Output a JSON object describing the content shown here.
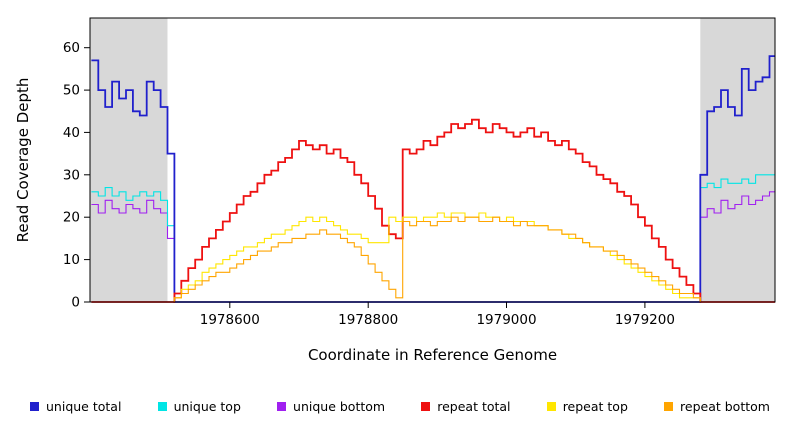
{
  "chart_data": {
    "type": "line",
    "title": "",
    "xlabel": "Coordinate in Reference Genome",
    "ylabel": "Read Coverage Depth",
    "xlim": [
      1978398,
      1979388
    ],
    "ylim": [
      0,
      67
    ],
    "x_ticks": [
      1978600,
      1978800,
      1979000,
      1979200
    ],
    "y_ticks": [
      0,
      10,
      20,
      30,
      40,
      50,
      60
    ],
    "grid": false,
    "legend_position": "bottom",
    "shaded_regions": {
      "color": "#D8D8D8",
      "ranges": [
        [
          1978398,
          1978510
        ],
        [
          1979280,
          1979388
        ]
      ]
    },
    "x_start": 1978400,
    "x_step": 10,
    "series": [
      {
        "name": "unique bottom",
        "color": "#A020F0",
        "width": 1.1,
        "values": [
          23,
          21,
          24,
          22,
          21,
          23,
          22,
          21,
          24,
          22,
          21,
          15,
          0,
          0,
          0,
          0,
          0,
          0,
          0,
          0,
          0,
          0,
          0,
          0,
          0,
          0,
          0,
          0,
          0,
          0,
          0,
          0,
          0,
          0,
          0,
          0,
          0,
          0,
          0,
          0,
          0,
          0,
          0,
          0,
          0,
          0,
          0,
          0,
          0,
          0,
          0,
          0,
          0,
          0,
          0,
          0,
          0,
          0,
          0,
          0,
          0,
          0,
          0,
          0,
          0,
          0,
          0,
          0,
          0,
          0,
          0,
          0,
          0,
          0,
          0,
          0,
          0,
          0,
          0,
          0,
          0,
          0,
          0,
          0,
          0,
          0,
          0,
          0,
          20,
          22,
          21,
          24,
          22,
          23,
          25,
          23,
          24,
          25,
          26
        ]
      },
      {
        "name": "unique top",
        "color": "#00E5E5",
        "width": 1.1,
        "values": [
          26,
          25,
          27,
          25,
          26,
          24,
          25,
          26,
          25,
          26,
          24,
          18,
          0,
          0,
          0,
          0,
          0,
          0,
          0,
          0,
          0,
          0,
          0,
          0,
          0,
          0,
          0,
          0,
          0,
          0,
          0,
          0,
          0,
          0,
          0,
          0,
          0,
          0,
          0,
          0,
          0,
          0,
          0,
          0,
          0,
          0,
          0,
          0,
          0,
          0,
          0,
          0,
          0,
          0,
          0,
          0,
          0,
          0,
          0,
          0,
          0,
          0,
          0,
          0,
          0,
          0,
          0,
          0,
          0,
          0,
          0,
          0,
          0,
          0,
          0,
          0,
          0,
          0,
          0,
          0,
          0,
          0,
          0,
          0,
          0,
          0,
          0,
          0,
          27,
          28,
          27,
          29,
          28,
          28,
          29,
          28,
          30,
          30,
          30
        ]
      },
      {
        "name": "unique total",
        "color": "#2020CC",
        "width": 1.8,
        "values": [
          57,
          50,
          46,
          52,
          48,
          50,
          45,
          44,
          52,
          50,
          46,
          35,
          0,
          0,
          0,
          0,
          0,
          0,
          0,
          0,
          0,
          0,
          0,
          0,
          0,
          0,
          0,
          0,
          0,
          0,
          0,
          0,
          0,
          0,
          0,
          0,
          0,
          0,
          0,
          0,
          0,
          0,
          0,
          0,
          0,
          0,
          0,
          0,
          0,
          0,
          0,
          0,
          0,
          0,
          0,
          0,
          0,
          0,
          0,
          0,
          0,
          0,
          0,
          0,
          0,
          0,
          0,
          0,
          0,
          0,
          0,
          0,
          0,
          0,
          0,
          0,
          0,
          0,
          0,
          0,
          0,
          0,
          0,
          0,
          0,
          0,
          0,
          0,
          30,
          45,
          46,
          50,
          46,
          44,
          55,
          50,
          52,
          53,
          58
        ]
      },
      {
        "name": "repeat total",
        "color": "#EE1111",
        "width": 1.8,
        "values": [
          0,
          0,
          0,
          0,
          0,
          0,
          0,
          0,
          0,
          0,
          0,
          0,
          2,
          5,
          8,
          10,
          13,
          15,
          17,
          19,
          21,
          23,
          25,
          26,
          28,
          30,
          31,
          33,
          34,
          36,
          38,
          37,
          36,
          37,
          35,
          36,
          34,
          33,
          30,
          28,
          25,
          22,
          18,
          16,
          15,
          36,
          35,
          36,
          38,
          37,
          39,
          40,
          42,
          41,
          42,
          43,
          41,
          40,
          42,
          41,
          40,
          39,
          40,
          41,
          39,
          40,
          38,
          37,
          38,
          36,
          35,
          33,
          32,
          30,
          29,
          28,
          26,
          25,
          23,
          20,
          18,
          15,
          13,
          10,
          8,
          6,
          4,
          2,
          0,
          0,
          0,
          0,
          0,
          0,
          0,
          0,
          0,
          0,
          0
        ]
      },
      {
        "name": "repeat top",
        "color": "#FFE600",
        "width": 1.1,
        "values": [
          0,
          0,
          0,
          0,
          0,
          0,
          0,
          0,
          0,
          0,
          0,
          0,
          1,
          3,
          4,
          5,
          7,
          8,
          9,
          10,
          11,
          12,
          13,
          13,
          14,
          15,
          16,
          16,
          17,
          18,
          19,
          20,
          19,
          20,
          19,
          18,
          17,
          16,
          16,
          15,
          14,
          14,
          14,
          20,
          19,
          20,
          20,
          19,
          20,
          20,
          21,
          20,
          21,
          21,
          20,
          20,
          21,
          20,
          20,
          19,
          20,
          19,
          19,
          19,
          18,
          18,
          17,
          17,
          16,
          15,
          15,
          14,
          13,
          13,
          12,
          11,
          10,
          9,
          8,
          7,
          6,
          5,
          4,
          3,
          2,
          1,
          1,
          1,
          0,
          0,
          0,
          0,
          0,
          0,
          0,
          0,
          0,
          0,
          0
        ]
      },
      {
        "name": "repeat bottom",
        "color": "#FFA500",
        "width": 1.1,
        "values": [
          0,
          0,
          0,
          0,
          0,
          0,
          0,
          0,
          0,
          0,
          0,
          0,
          1,
          2,
          3,
          4,
          5,
          6,
          7,
          7,
          8,
          9,
          10,
          11,
          12,
          12,
          13,
          14,
          14,
          15,
          15,
          16,
          16,
          17,
          16,
          16,
          15,
          14,
          13,
          11,
          9,
          7,
          5,
          3,
          1,
          19,
          18,
          19,
          19,
          18,
          19,
          19,
          20,
          19,
          20,
          20,
          19,
          19,
          20,
          19,
          19,
          18,
          19,
          18,
          18,
          18,
          17,
          17,
          16,
          16,
          15,
          14,
          13,
          13,
          12,
          12,
          11,
          10,
          9,
          8,
          7,
          6,
          5,
          4,
          3,
          2,
          2,
          1,
          0,
          0,
          0,
          0,
          0,
          0,
          0,
          0,
          0,
          0,
          0
        ]
      }
    ],
    "legend": {
      "items": [
        {
          "label": "unique total",
          "color": "#2020CC"
        },
        {
          "label": "unique top",
          "color": "#00E5E5"
        },
        {
          "label": "unique bottom",
          "color": "#A020F0"
        },
        {
          "label": "repeat total",
          "color": "#EE1111"
        },
        {
          "label": "repeat top",
          "color": "#FFE600"
        },
        {
          "label": "repeat bottom",
          "color": "#FFA500"
        }
      ]
    }
  }
}
